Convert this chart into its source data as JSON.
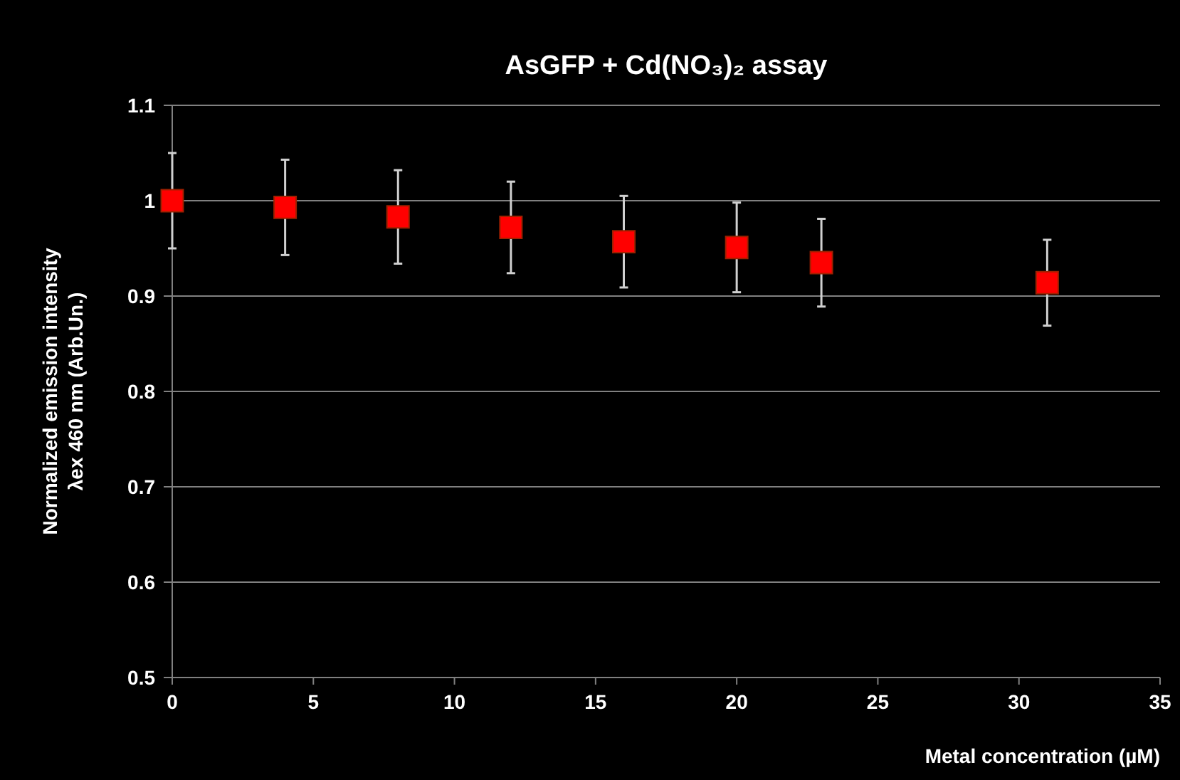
{
  "chart_data": {
    "type": "scatter",
    "title": "AsGFP + Cd(NO₃)₂ assay",
    "xlabel": "Metal concentration (µM)",
    "ylabel": "Normalized emission intensity\nλex 460 nm (Arb.Un.)",
    "x": [
      0,
      4,
      8,
      12,
      16,
      20,
      23,
      31
    ],
    "series": [
      {
        "color": "#ff0000",
        "values": [
          1.0,
          0.993,
          0.983,
          0.972,
          0.957,
          0.951,
          0.935,
          0.914
        ],
        "errors": [
          0.05,
          0.05,
          0.049,
          0.048,
          0.048,
          0.047,
          0.046,
          0.045
        ]
      }
    ],
    "xlim": [
      0,
      35
    ],
    "xticks": [
      0,
      5,
      10,
      15,
      20,
      25,
      30,
      35
    ],
    "ylim": [
      0.5,
      1.1
    ],
    "yticks": [
      0.5,
      0.6,
      0.7,
      0.8,
      0.9,
      1,
      1.1
    ],
    "grid": "y",
    "marker": "square"
  }
}
